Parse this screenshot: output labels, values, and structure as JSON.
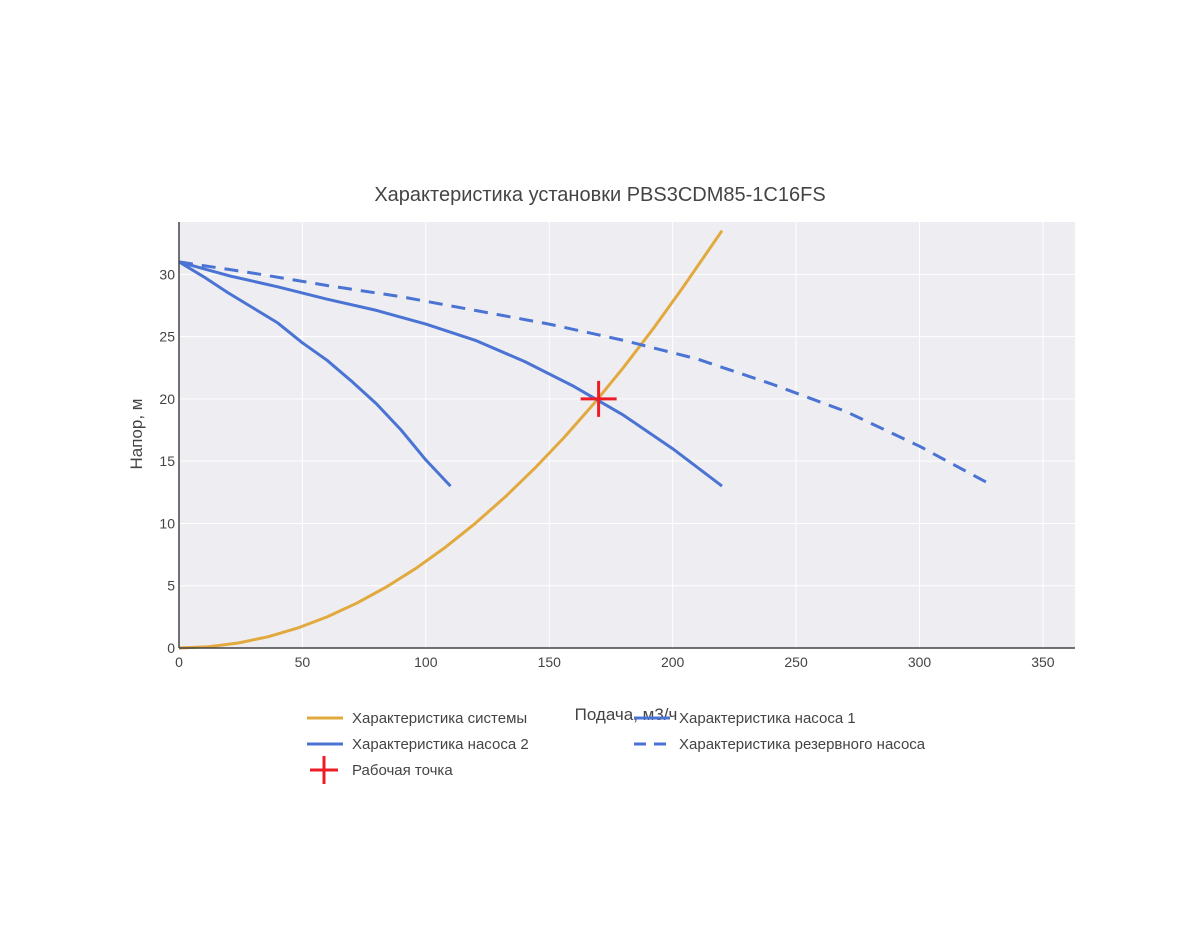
{
  "chart_data": {
    "type": "line",
    "title": "Характеристика установки PBS3CDM85-1C16FS",
    "xlabel": "Подача, м3/ч",
    "ylabel": "Напор, м",
    "xlim": [
      0,
      363
    ],
    "ylim": [
      0,
      34.2
    ],
    "x_ticks": [
      0,
      50,
      100,
      150,
      200,
      250,
      300,
      350
    ],
    "y_ticks": [
      0,
      5,
      10,
      15,
      20,
      25,
      30
    ],
    "grid": true,
    "legend_position": "bottom",
    "colors": {
      "plot_bg": "#eeeef2",
      "grid": "#ffffff",
      "axis": "#444444",
      "system": "#e2a93e",
      "pump": "#4a73d4",
      "working_point": "#ee1c25"
    },
    "series": [
      {
        "name": "Характеристика системы",
        "color": "#e2a93e",
        "dash": "solid",
        "x": [
          0,
          12,
          24,
          36,
          48,
          60,
          72,
          84,
          96,
          108,
          120,
          132,
          144,
          156,
          168,
          180,
          192,
          204,
          220
        ],
        "y": [
          0,
          0.1,
          0.4,
          0.9,
          1.6,
          2.5,
          3.6,
          4.9,
          6.4,
          8.1,
          10.0,
          12.1,
          14.4,
          16.9,
          19.6,
          22.5,
          25.6,
          28.9,
          33.5
        ]
      },
      {
        "name": "Характеристика насоса 1",
        "color": "#4a73d4",
        "dash": "solid",
        "x": [
          0,
          10,
          20,
          30,
          40,
          50,
          60,
          70,
          80,
          90,
          100,
          110
        ],
        "y": [
          31.0,
          29.8,
          28.5,
          27.3,
          26.1,
          24.5,
          23.1,
          21.4,
          19.6,
          17.5,
          15.1,
          13.0
        ]
      },
      {
        "name": "Характеристика насоса 2",
        "color": "#4a73d4",
        "dash": "solid",
        "x": [
          0,
          20,
          40,
          60,
          80,
          100,
          120,
          140,
          160,
          180,
          200,
          220
        ],
        "y": [
          31.0,
          29.9,
          29.0,
          28.0,
          27.1,
          26.0,
          24.7,
          23.0,
          21.0,
          18.7,
          16.0,
          13.0
        ]
      },
      {
        "name": "Характеристика резервного насоса",
        "color": "#4a73d4",
        "dash": "dash",
        "x": [
          0,
          30,
          60,
          90,
          120,
          150,
          180,
          210,
          240,
          270,
          300,
          330
        ],
        "y": [
          31.0,
          30.1,
          29.1,
          28.2,
          27.1,
          26.0,
          24.7,
          23.2,
          21.2,
          19.0,
          16.2,
          13.0
        ]
      },
      {
        "name": "Рабочая точка",
        "color": "#ee1c25",
        "marker": "cross",
        "x": [
          170
        ],
        "y": [
          20.0
        ]
      }
    ]
  }
}
